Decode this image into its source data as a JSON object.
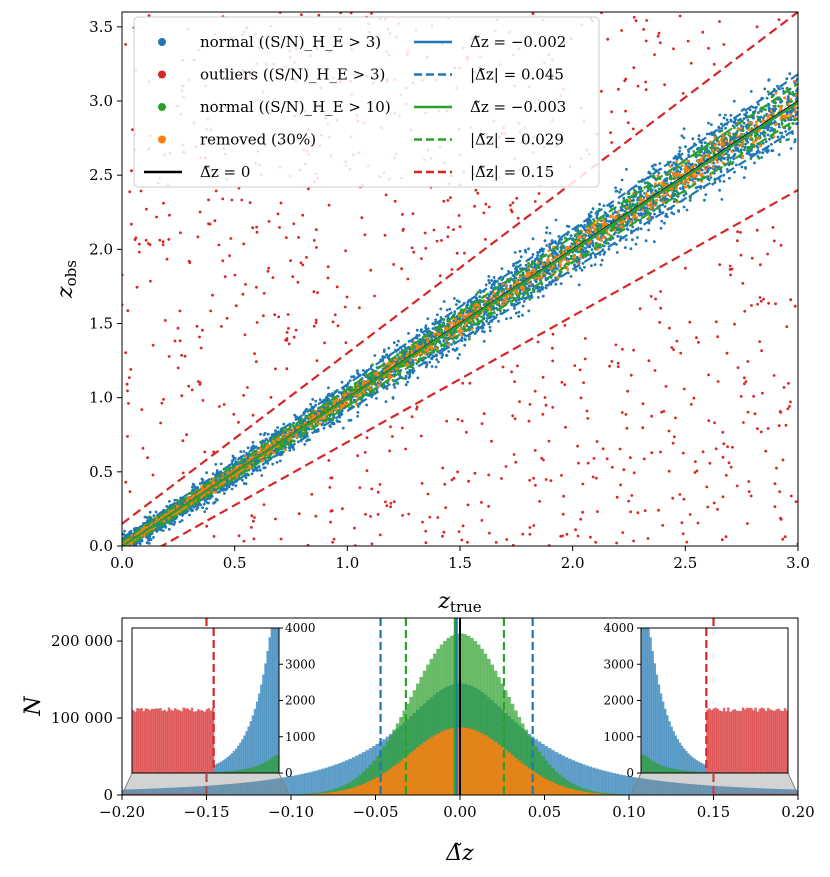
{
  "chart_data": [
    {
      "type": "scatter",
      "xlabel": "z_true",
      "ylabel": "z_obs",
      "xlim": [
        0,
        3.0
      ],
      "ylim": [
        0,
        3.6
      ],
      "x_ticks": [
        "0.0",
        "0.5",
        "1.0",
        "1.5",
        "2.0",
        "2.5",
        "3.0"
      ],
      "y_ticks": [
        "0.0",
        "0.5",
        "1.0",
        "1.5",
        "2.0",
        "2.5",
        "3.0",
        "3.5"
      ],
      "legend_position": "top-left",
      "legend": [
        {
          "label": "normal ((S/N)_H_E > 3)",
          "marker": "dot",
          "color": "#1f77b4"
        },
        {
          "label": "outliers ((S/N)_H_E > 3)",
          "marker": "dot",
          "color": "#d62728"
        },
        {
          "label": "normal ((S/N)_H_E > 10)",
          "marker": "dot",
          "color": "#2ca02c"
        },
        {
          "label": "removed (30%)",
          "marker": "dot",
          "color": "#ff7f0e"
        },
        {
          "label": "Δ̃z = 0",
          "marker": "line",
          "color": "#000000"
        },
        {
          "label": "Δ̃z = −0.002",
          "marker": "line",
          "color": "#1f77b4"
        },
        {
          "label": "|Δ̃z| = 0.045",
          "marker": "dashed",
          "color": "#1f77b4"
        },
        {
          "label": "Δ̃z = −0.003",
          "marker": "line",
          "color": "#2ca02c"
        },
        {
          "label": "|Δ̃z| = 0.029",
          "marker": "dashed",
          "color": "#2ca02c"
        },
        {
          "label": "|Δ̃z| = 0.15",
          "marker": "dashed",
          "color": "#d62728"
        }
      ],
      "lines": [
        {
          "name": "Δ̃z = 0",
          "delta": 0.0,
          "style": "solid",
          "color": "#000000"
        },
        {
          "name": "Δ̃z = −0.002",
          "delta": -0.002,
          "style": "solid",
          "color": "#1f77b4"
        },
        {
          "name": "|Δ̃z| = 0.045",
          "delta": 0.045,
          "style": "dashed",
          "color": "#1f77b4"
        },
        {
          "name": "Δ̃z = −0.003",
          "delta": -0.003,
          "style": "solid",
          "color": "#2ca02c"
        },
        {
          "name": "|Δ̃z| = 0.029",
          "delta": 0.029,
          "style": "dashed",
          "color": "#2ca02c"
        },
        {
          "name": "|Δ̃z| = 0.15",
          "delta": 0.15,
          "style": "dashed",
          "color": "#d62728"
        }
      ],
      "series": [
        {
          "name": "normal ((S/N)_H_E > 3)",
          "color": "#1f77b4",
          "sigma": 0.03,
          "x_range": [
            0,
            3.0
          ]
        },
        {
          "name": "outliers ((S/N)_H_E > 3)",
          "color": "#d62728",
          "x_range": [
            0,
            3.0
          ],
          "y_range": [
            0,
            3.6
          ]
        },
        {
          "name": "normal ((S/N)_H_E > 10)",
          "color": "#2ca02c",
          "sigma": 0.02,
          "x_range": [
            0,
            3.0
          ]
        },
        {
          "name": "removed (30%)",
          "color": "#ff7f0e",
          "sigma": 0.015,
          "x_range": [
            0,
            3.0
          ]
        }
      ]
    },
    {
      "type": "histogram",
      "xlabel": "Δ̃z",
      "ylabel": "N",
      "xlim": [
        -0.2,
        0.2
      ],
      "ylim": [
        0,
        230000
      ],
      "x_ticks": [
        "−0.20",
        "−0.15",
        "−0.10",
        "−0.05",
        "0.00",
        "0.05",
        "0.10",
        "0.15",
        "0.20"
      ],
      "y_ticks": [
        "0",
        "100 000",
        "200 000"
      ],
      "inset_y_ticks": [
        "0",
        "1000",
        "2000",
        "3000",
        "4000"
      ],
      "inset_ylim": [
        0,
        4000
      ],
      "series": [
        {
          "name": "normal ((S/N)_H_E > 3)",
          "color": "#1f77b4",
          "peak": 145000,
          "sigma": 0.045
        },
        {
          "name": "normal ((S/N)_H_E > 10)",
          "color": "#2ca02c",
          "peak": 210000,
          "sigma": 0.029
        },
        {
          "name": "removed (30%)",
          "color": "#ff7f0e",
          "peak": 88000,
          "sigma": 0.03
        },
        {
          "name": "outliers ((S/N)_H_E > 3)",
          "color": "#d62728",
          "level": 1750
        }
      ],
      "vlines": [
        {
          "x": 0.0,
          "color": "#000000",
          "style": "solid"
        },
        {
          "x": -0.002,
          "color": "#1f77b4",
          "style": "solid"
        },
        {
          "x": -0.003,
          "color": "#2ca02c",
          "style": "solid"
        },
        {
          "x": -0.047,
          "color": "#1f77b4",
          "style": "dashed"
        },
        {
          "x": 0.043,
          "color": "#1f77b4",
          "style": "dashed"
        },
        {
          "x": -0.032,
          "color": "#2ca02c",
          "style": "dashed"
        },
        {
          "x": 0.026,
          "color": "#2ca02c",
          "style": "dashed"
        },
        {
          "x": -0.15,
          "color": "#d62728",
          "style": "dashed"
        },
        {
          "x": 0.15,
          "color": "#d62728",
          "style": "dashed"
        }
      ]
    }
  ]
}
